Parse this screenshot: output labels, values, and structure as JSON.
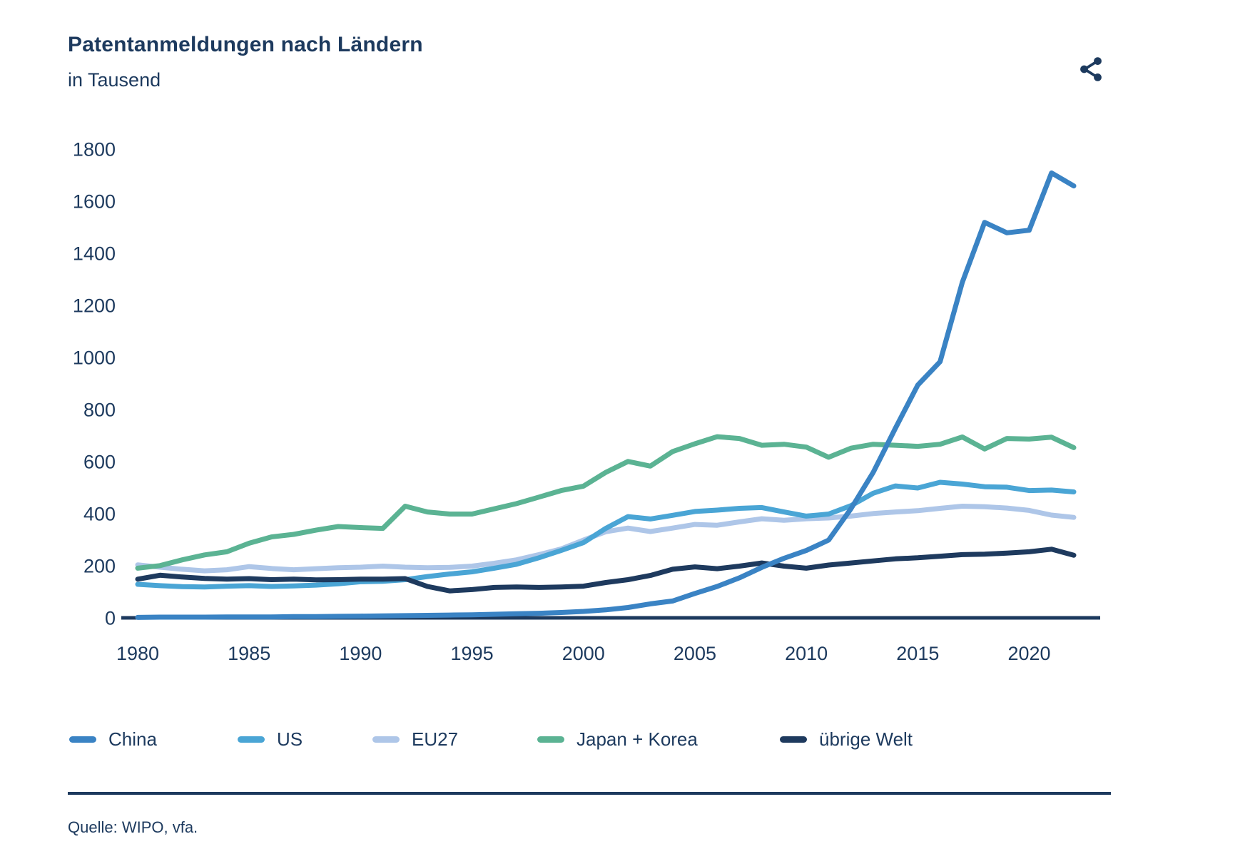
{
  "header": {
    "title": "Patentanmeldungen nach Ländern",
    "subtitle": "in Tausend"
  },
  "toolbar": {
    "share_icon": "share-icon"
  },
  "colors": {
    "text": "#1d3a5e",
    "axis": "#1d3a5e",
    "china": "#3a83c4",
    "us": "#4aa5d5",
    "eu27": "#aec6e8",
    "japan_korea": "#5bb393",
    "uebrige_welt": "#1e3a5e"
  },
  "chart_data": {
    "type": "line",
    "title": "Patentanmeldungen nach Ländern",
    "subtitle": "in Tausend",
    "xlabel": "",
    "ylabel": "in Tausend",
    "xlim": [
      1980,
      2022
    ],
    "ylim": [
      0,
      1800
    ],
    "xticks": [
      1980,
      1985,
      1990,
      1995,
      2000,
      2005,
      2010,
      2015,
      2020
    ],
    "yticks": [
      0,
      200,
      400,
      600,
      800,
      1000,
      1200,
      1400,
      1600,
      1800
    ],
    "grid": false,
    "legend_position": "bottom",
    "x": [
      1980,
      1981,
      1982,
      1983,
      1984,
      1985,
      1986,
      1987,
      1988,
      1989,
      1990,
      1991,
      1992,
      1993,
      1994,
      1995,
      1996,
      1997,
      1998,
      1999,
      2000,
      2001,
      2002,
      2003,
      2004,
      2005,
      2006,
      2007,
      2008,
      2009,
      2010,
      2011,
      2012,
      2013,
      2014,
      2015,
      2016,
      2017,
      2018,
      2019,
      2020,
      2021,
      2022
    ],
    "series": [
      {
        "name": "China",
        "color": "#3a83c4",
        "z": 5,
        "values": [
          3,
          4,
          4,
          4,
          5,
          5,
          5,
          6,
          6,
          7,
          8,
          9,
          10,
          11,
          12,
          13,
          15,
          17,
          19,
          22,
          26,
          32,
          41,
          55,
          66,
          95,
          122,
          155,
          195,
          230,
          260,
          300,
          420,
          560,
          730,
          895,
          985,
          1290,
          1520,
          1480,
          1490,
          1710,
          1660
        ]
      },
      {
        "name": "US",
        "color": "#4aa5d5",
        "z": 2,
        "values": [
          130,
          125,
          121,
          120,
          123,
          125,
          122,
          124,
          127,
          132,
          140,
          142,
          148,
          160,
          170,
          178,
          192,
          207,
          232,
          260,
          290,
          345,
          390,
          381,
          395,
          410,
          415,
          422,
          425,
          408,
          392,
          400,
          432,
          480,
          508,
          500,
          522,
          515,
          505,
          503,
          490,
          492,
          485
        ]
      },
      {
        "name": "EU27",
        "color": "#aec6e8",
        "z": 1,
        "values": [
          205,
          196,
          188,
          182,
          186,
          198,
          191,
          186,
          190,
          194,
          196,
          200,
          196,
          194,
          195,
          200,
          211,
          224,
          244,
          266,
          300,
          332,
          346,
          333,
          346,
          360,
          357,
          370,
          382,
          376,
          382,
          385,
          392,
          402,
          408,
          413,
          422,
          430,
          428,
          423,
          414,
          396,
          387
        ]
      },
      {
        "name": "Japan + Korea",
        "color": "#5bb393",
        "z": 3,
        "values": [
          192,
          202,
          224,
          243,
          255,
          288,
          312,
          322,
          338,
          352,
          348,
          345,
          430,
          408,
          400,
          400,
          420,
          440,
          465,
          490,
          507,
          560,
          602,
          584,
          640,
          670,
          697,
          690,
          664,
          668,
          657,
          618,
          653,
          668,
          664,
          660,
          668,
          696,
          650,
          690,
          688,
          695,
          655
        ]
      },
      {
        "name": "übrige Welt",
        "color": "#1e3a5e",
        "z": 4,
        "values": [
          150,
          165,
          158,
          153,
          150,
          152,
          148,
          150,
          147,
          148,
          150,
          150,
          152,
          122,
          105,
          110,
          118,
          120,
          118,
          120,
          123,
          137,
          148,
          164,
          188,
          197,
          190,
          200,
          212,
          200,
          192,
          204,
          212,
          220,
          228,
          232,
          238,
          244,
          246,
          250,
          255,
          265,
          242
        ]
      }
    ]
  },
  "source": {
    "text": "Quelle: WIPO, vfa."
  }
}
